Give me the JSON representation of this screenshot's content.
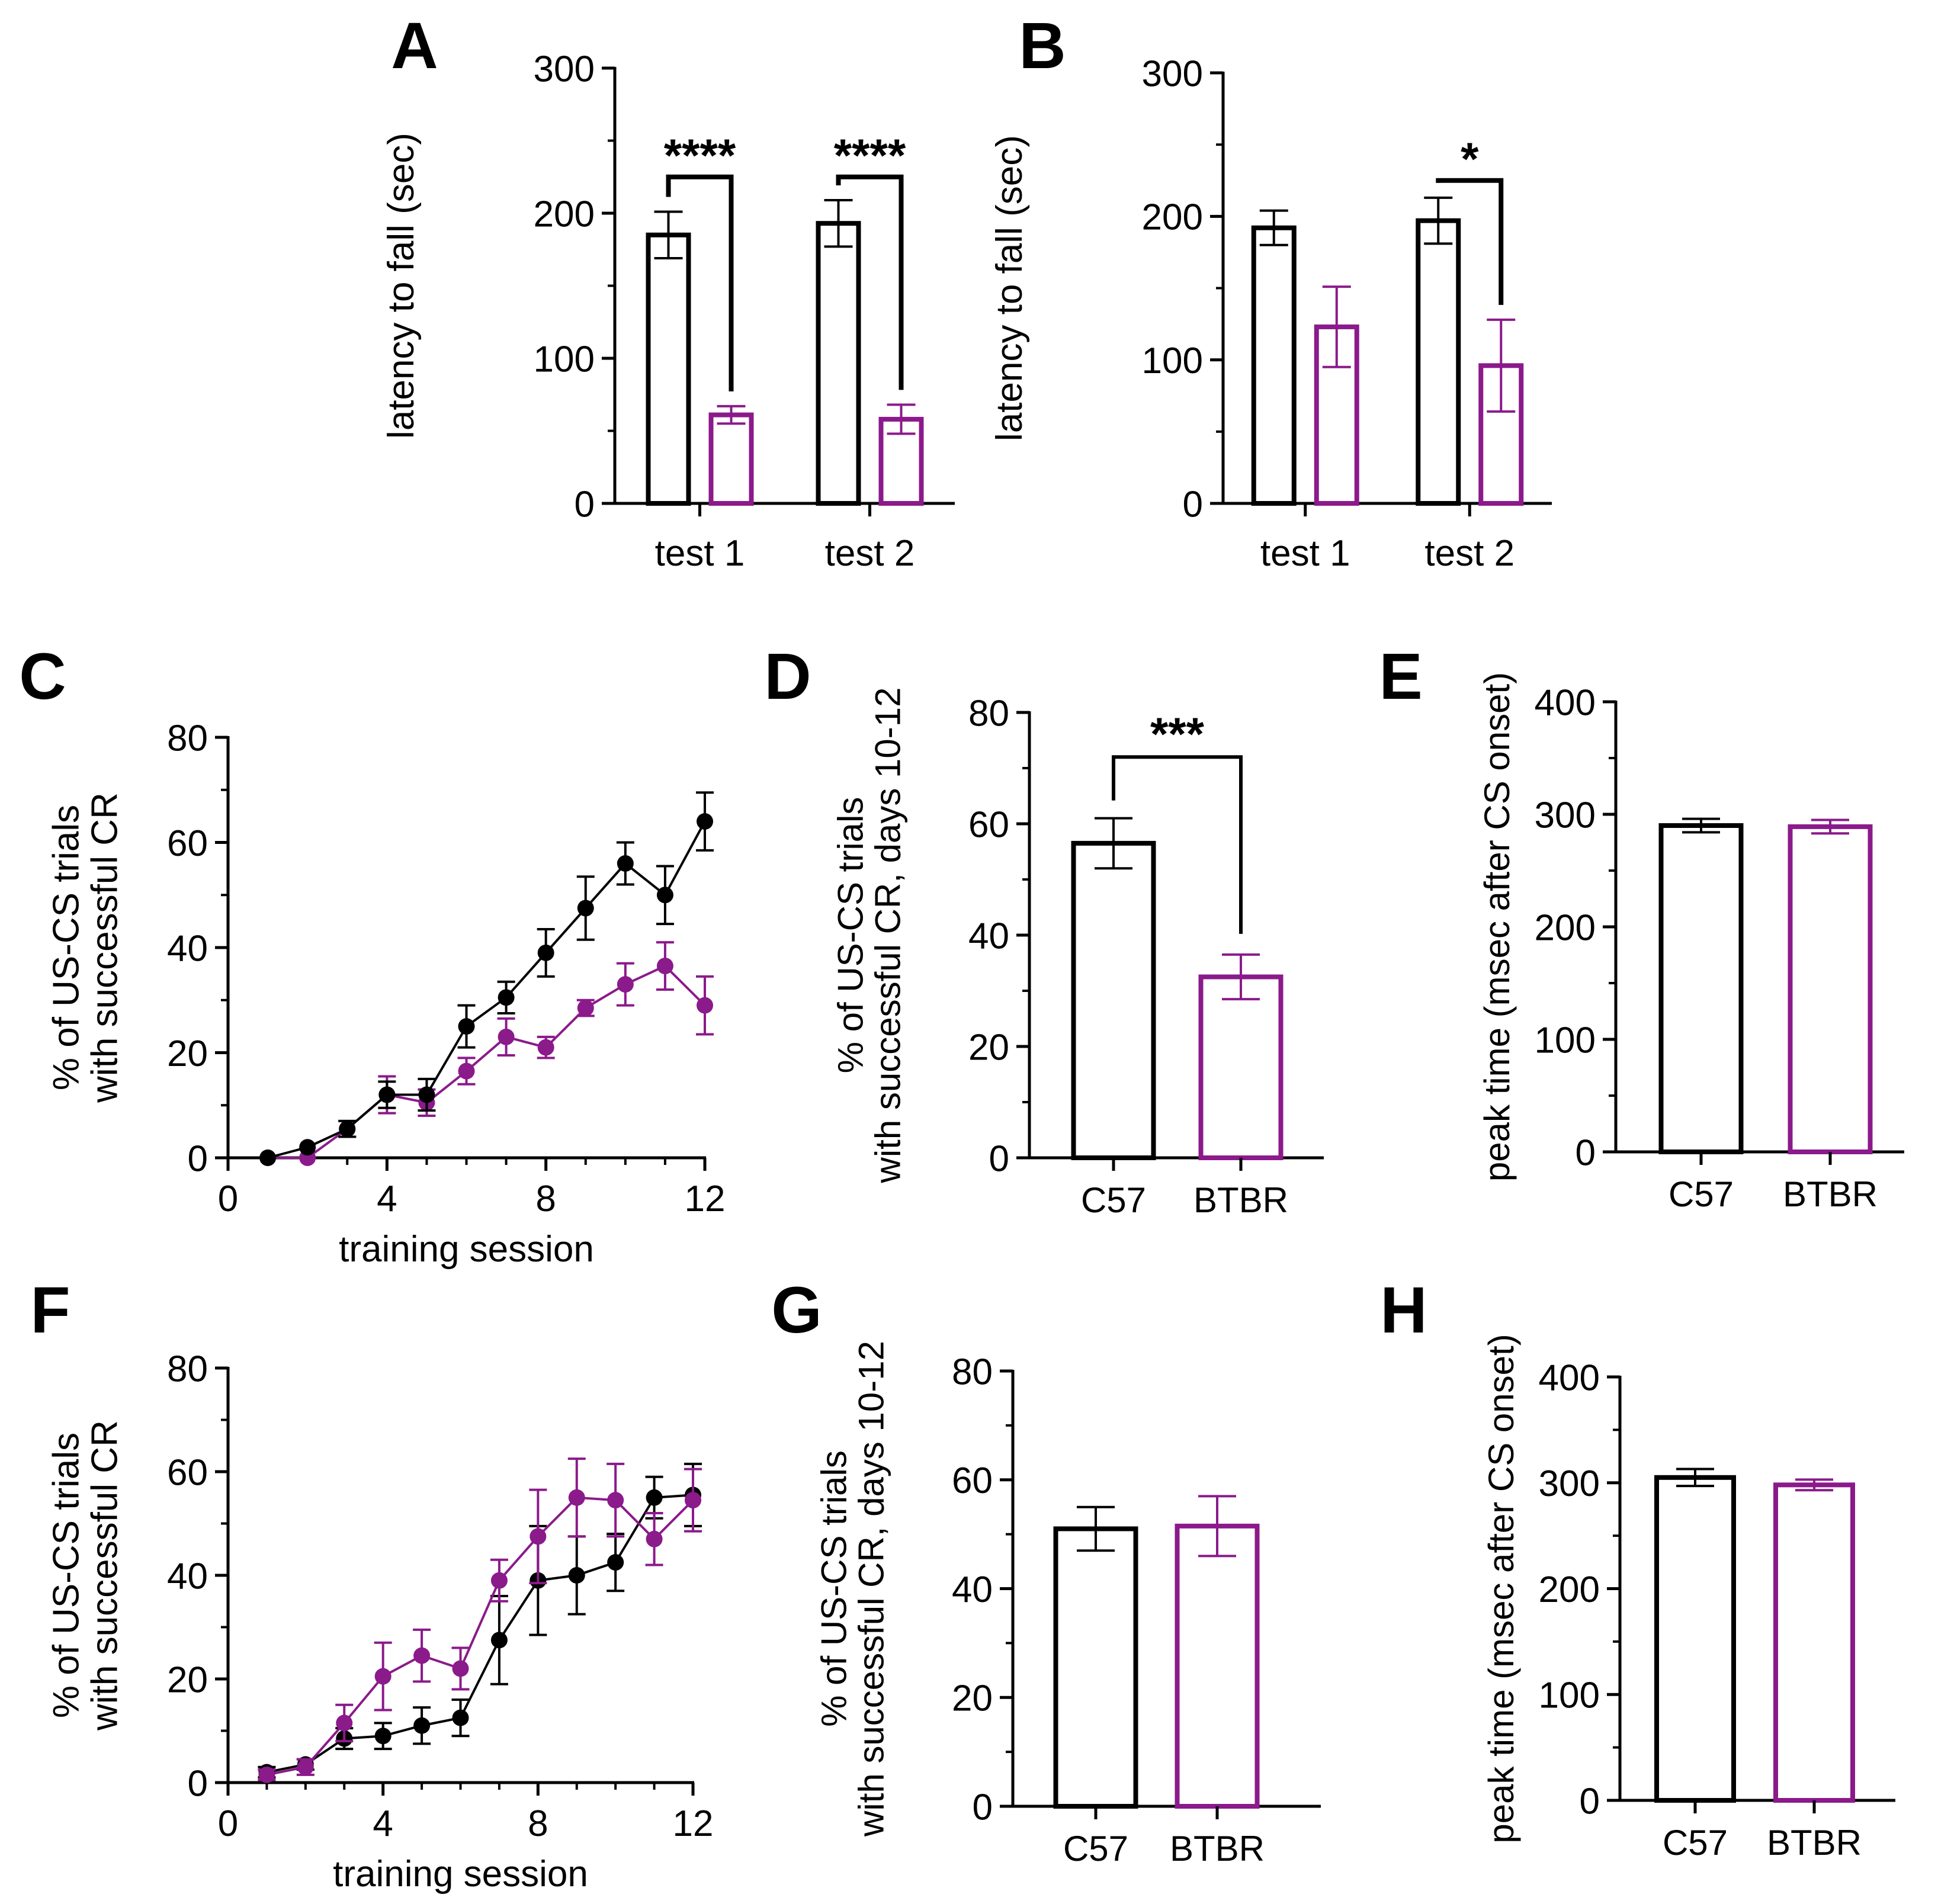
{
  "colors": {
    "c57": "#000000",
    "btbr": "#8b1a8b"
  },
  "panel_labels": [
    "A",
    "B",
    "C",
    "D",
    "E",
    "F",
    "G",
    "H"
  ],
  "chart_data": [
    {
      "panel": "A",
      "type": "bar",
      "ylabel": "latency to fall (sec)",
      "ylim": [
        0,
        300
      ],
      "yticks": [
        0,
        100,
        200,
        300
      ],
      "groups": [
        "test 1",
        "test 2"
      ],
      "series": [
        {
          "name": "C57",
          "values": [
            185,
            193
          ],
          "errors": [
            16,
            16
          ]
        },
        {
          "name": "BTBR",
          "values": [
            61,
            58
          ],
          "errors": [
            6,
            10
          ]
        }
      ],
      "significance": [
        "****",
        "****"
      ]
    },
    {
      "panel": "B",
      "type": "bar",
      "ylabel": "latency to fall (sec)",
      "ylim": [
        0,
        300
      ],
      "yticks": [
        0,
        100,
        200,
        300
      ],
      "groups": [
        "test 1",
        "test 2"
      ],
      "series": [
        {
          "name": "C57",
          "values": [
            192,
            197
          ],
          "errors": [
            12,
            16
          ]
        },
        {
          "name": "BTBR",
          "values": [
            123,
            96
          ],
          "errors": [
            28,
            32
          ]
        }
      ],
      "significance": [
        "",
        "*"
      ]
    },
    {
      "panel": "C",
      "type": "line",
      "ylabel": "% of US-CS trials\nwith successful CR",
      "xlabel": "training session",
      "xlim": [
        0,
        12
      ],
      "ylim": [
        0,
        80
      ],
      "xticks": [
        0,
        4,
        8,
        12
      ],
      "yticks": [
        0,
        20,
        40,
        60,
        80
      ],
      "x": [
        1,
        2,
        3,
        4,
        5,
        6,
        7,
        8,
        9,
        10,
        11,
        12
      ],
      "series": [
        {
          "name": "C57",
          "values": [
            0,
            2,
            5.5,
            12,
            12,
            25,
            30.5,
            39,
            47.5,
            56,
            50,
            64
          ],
          "errors": [
            0,
            0,
            1.5,
            2.5,
            3,
            4,
            3,
            4.5,
            6,
            4,
            5.5,
            5.5
          ]
        },
        {
          "name": "BTBR",
          "values": [
            0,
            0,
            5.5,
            12,
            10.5,
            16.5,
            23,
            21,
            28.5,
            33,
            36.5,
            29
          ],
          "errors": [
            0,
            0,
            1.5,
            3.5,
            2.5,
            2.5,
            3.5,
            2,
            1.5,
            4,
            4.5,
            5.5
          ]
        }
      ]
    },
    {
      "panel": "D",
      "type": "bar",
      "ylabel": "% of US-CS trials\nwith successful CR, days 10-12",
      "ylim": [
        0,
        80
      ],
      "yticks": [
        0,
        20,
        40,
        60,
        80
      ],
      "categories": [
        "C57",
        "BTBR"
      ],
      "values": [
        56.5,
        32.5
      ],
      "errors": [
        4.5,
        4
      ],
      "significance": "***"
    },
    {
      "panel": "E",
      "type": "bar",
      "ylabel": "peak time (msec after CS onset)",
      "ylim": [
        0,
        400
      ],
      "yticks": [
        0,
        100,
        200,
        300,
        400
      ],
      "categories": [
        "C57",
        "BTBR"
      ],
      "values": [
        290,
        289
      ],
      "errors": [
        6,
        6
      ]
    },
    {
      "panel": "F",
      "type": "line",
      "ylabel": "% of US-CS trials\nwith successful CR",
      "xlabel": "training session",
      "xlim": [
        0,
        12
      ],
      "ylim": [
        0,
        80
      ],
      "xticks": [
        0,
        4,
        8,
        12
      ],
      "yticks": [
        0,
        20,
        40,
        60,
        80
      ],
      "x": [
        1,
        2,
        3,
        4,
        5,
        6,
        7,
        8,
        9,
        10,
        11,
        12
      ],
      "series": [
        {
          "name": "C57",
          "values": [
            2,
            3.5,
            8.5,
            9,
            11,
            12.5,
            27.5,
            39,
            40,
            42.5,
            55,
            55.5
          ],
          "errors": [
            1,
            1,
            2,
            2.5,
            3.5,
            3.5,
            8.5,
            10.5,
            7.5,
            5.5,
            4,
            6
          ]
        },
        {
          "name": "BTBR",
          "values": [
            1.5,
            3,
            11.5,
            20.5,
            24.5,
            22,
            39,
            47.5,
            55,
            54.5,
            47,
            54.5
          ],
          "errors": [
            1,
            1.5,
            3.5,
            6.5,
            5,
            4,
            4,
            9,
            7.5,
            7,
            5,
            6
          ]
        }
      ]
    },
    {
      "panel": "G",
      "type": "bar",
      "ylabel": "% of US-CS trials\nwith successful CR, days 10-12",
      "ylim": [
        0,
        80
      ],
      "yticks": [
        0,
        20,
        40,
        60,
        80
      ],
      "categories": [
        "C57",
        "BTBR"
      ],
      "values": [
        51,
        51.5
      ],
      "errors": [
        4,
        5.5
      ]
    },
    {
      "panel": "H",
      "type": "bar",
      "ylabel": "peak time (msec after CS onset)",
      "ylim": [
        0,
        400
      ],
      "yticks": [
        0,
        100,
        200,
        300,
        400
      ],
      "categories": [
        "C57",
        "BTBR"
      ],
      "values": [
        305,
        298
      ],
      "errors": [
        8,
        5
      ]
    }
  ]
}
